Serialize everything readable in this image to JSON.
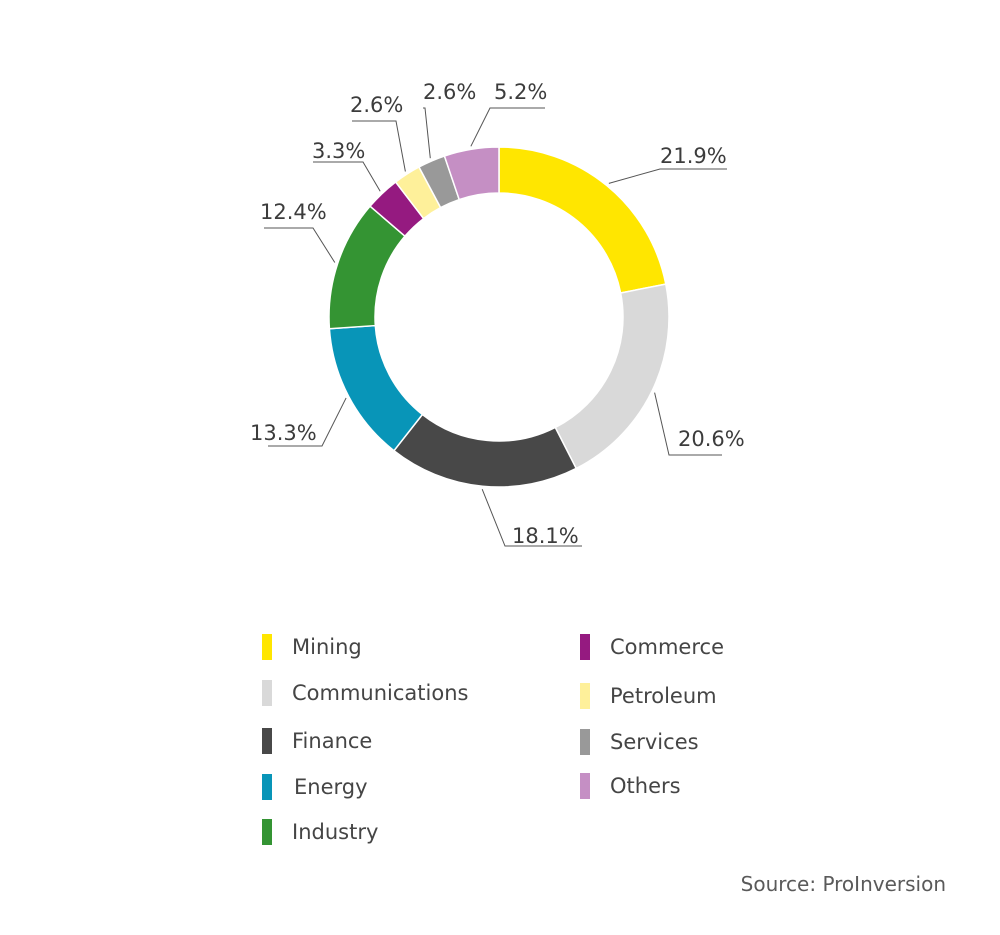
{
  "chart_data": {
    "type": "donut",
    "categories": [
      "Mining",
      "Communications",
      "Finance",
      "Energy",
      "Industry",
      "Commerce",
      "Petroleum",
      "Services",
      "Others"
    ],
    "values": [
      21.9,
      20.6,
      18.1,
      13.3,
      12.4,
      3.3,
      2.6,
      2.6,
      5.2
    ],
    "data_labels": [
      "21.9%",
      "20.6%",
      "18.1%",
      "13.3%",
      "12.4%",
      "3.3%",
      "2.6%",
      "2.6%",
      "5.2%"
    ],
    "colors": [
      "#ffe600",
      "#d9d9d9",
      "#484848",
      "#0895b8",
      "#349433",
      "#951a80",
      "#fef09a",
      "#999999",
      "#c58fc4"
    ],
    "legend_placement": "bottom"
  },
  "legend": {
    "items": [
      {
        "label": "Mining",
        "color": "#ffe600"
      },
      {
        "label": "Communications",
        "color": "#d9d9d9"
      },
      {
        "label": "Finance",
        "color": "#484848"
      },
      {
        "label": "Energy",
        "color": "#0895b8"
      },
      {
        "label": "Industry",
        "color": "#349433"
      },
      {
        "label": "Commerce",
        "color": "#951a80"
      },
      {
        "label": "Petroleum",
        "color": "#fef09a"
      },
      {
        "label": "Services",
        "color": "#999999"
      },
      {
        "label": "Others",
        "color": "#c58fc4"
      }
    ]
  },
  "source": "Source: ProInversion"
}
